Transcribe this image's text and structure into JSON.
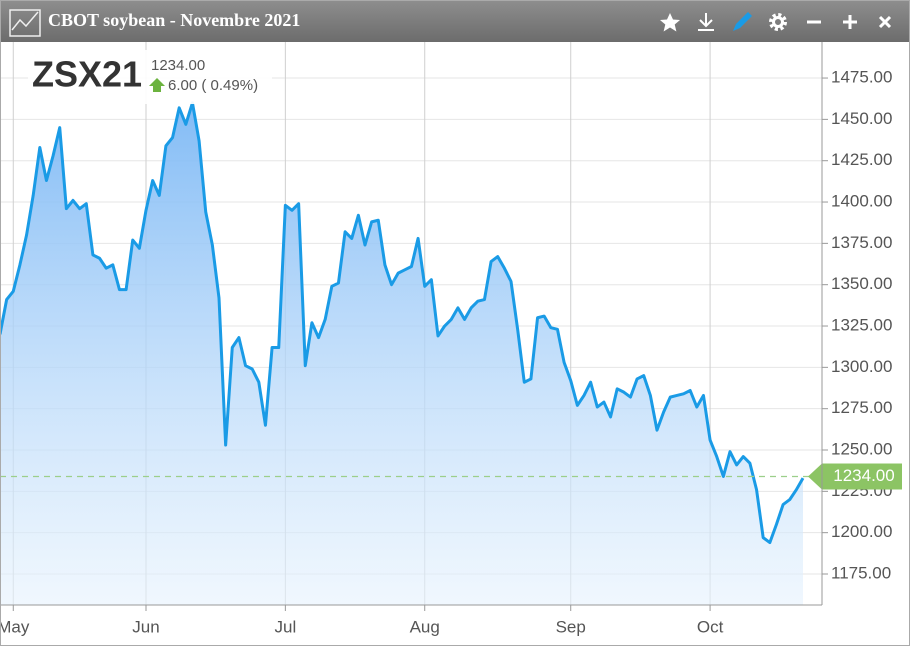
{
  "title": "CBOT soybean - Novembre 2021",
  "quote": {
    "symbol": "ZSX21",
    "last": "1234.00",
    "change": "6.00",
    "change_pct": "( 0.49%)"
  },
  "chart_data": {
    "type": "area",
    "color": "#1a9be6",
    "categories": [
      null,
      null,
      "May",
      null,
      null,
      null,
      null,
      null,
      null,
      null,
      null,
      null,
      null,
      null,
      null,
      null,
      null,
      null,
      null,
      null,
      null,
      null,
      "Jun",
      null,
      null,
      null,
      null,
      null,
      null,
      null,
      null,
      null,
      null,
      null,
      null,
      null,
      null,
      null,
      null,
      null,
      null,
      null,
      null,
      "Jul",
      null,
      null,
      null,
      null,
      null,
      null,
      null,
      null,
      null,
      null,
      null,
      null,
      null,
      null,
      null,
      null,
      null,
      null,
      null,
      null,
      "Aug",
      null,
      null,
      null,
      null,
      null,
      null,
      null,
      null,
      null,
      null,
      null,
      null,
      null,
      null,
      null,
      null,
      null,
      null,
      null,
      null,
      null,
      "Sep",
      null,
      null,
      null,
      null,
      null,
      null,
      null,
      null,
      null,
      null,
      null,
      null,
      null,
      null,
      null,
      null,
      null,
      null,
      null,
      null,
      "Oct",
      null,
      null,
      null,
      null,
      null,
      null,
      null,
      null,
      null,
      null,
      null,
      null,
      null,
      null
    ],
    "values": [
      1320,
      1341,
      1346,
      1362,
      1380,
      1404,
      1433,
      1413,
      1428,
      1445,
      1396,
      1401,
      1396,
      1399,
      1368,
      1366,
      1360,
      1362,
      1347,
      1347,
      1377,
      1372,
      1395,
      1413,
      1404,
      1434,
      1439,
      1457,
      1447,
      1460,
      1437,
      1394,
      1374,
      1342,
      1253,
      1312,
      1318,
      1301,
      1299,
      1291,
      1265,
      1312,
      1312,
      1398,
      1395,
      1399,
      1301,
      1327,
      1318,
      1329,
      1349,
      1351,
      1382,
      1378,
      1392,
      1374,
      1388,
      1389,
      1362,
      1350,
      1357,
      1359,
      1361,
      1378,
      1349,
      1353,
      1319,
      1325,
      1329,
      1336,
      1329,
      1336,
      1340,
      1341,
      1364,
      1367,
      1360,
      1352,
      1323,
      1291,
      1293,
      1330,
      1331,
      1324,
      1323,
      1303,
      1292,
      1277,
      1283,
      1291,
      1276,
      1279,
      1270,
      1287,
      1285,
      1282,
      1293,
      1295,
      1283,
      1262,
      1273,
      1282,
      1283,
      1284,
      1286,
      1276,
      1283,
      1256,
      1246,
      1234,
      1249,
      1241,
      1246,
      1242,
      1226,
      1197,
      1194,
      1205,
      1217,
      1220,
      1226,
      1233
    ],
    "last": {
      "value": 1234,
      "label": "1234.00",
      "color": "#8cc464"
    },
    "ylim": [
      1156.25,
      1496.8
    ],
    "yticks": [
      {
        "value": 1175,
        "label": "1175.00"
      },
      {
        "value": 1200,
        "label": "1200.00"
      },
      {
        "value": 1225,
        "label": "1225.00"
      },
      {
        "value": 1250,
        "label": "1250.00"
      },
      {
        "value": 1275,
        "label": "1275.00"
      },
      {
        "value": 1300,
        "label": "1300.00"
      },
      {
        "value": 1325,
        "label": "1325.00"
      },
      {
        "value": 1350,
        "label": "1350.00"
      },
      {
        "value": 1375,
        "label": "1375.00"
      },
      {
        "value": 1400,
        "label": "1400.00"
      },
      {
        "value": 1425,
        "label": "1425.00"
      },
      {
        "value": 1450,
        "label": "1450.00"
      },
      {
        "value": 1475,
        "label": "1475.00"
      }
    ],
    "grid": true
  }
}
